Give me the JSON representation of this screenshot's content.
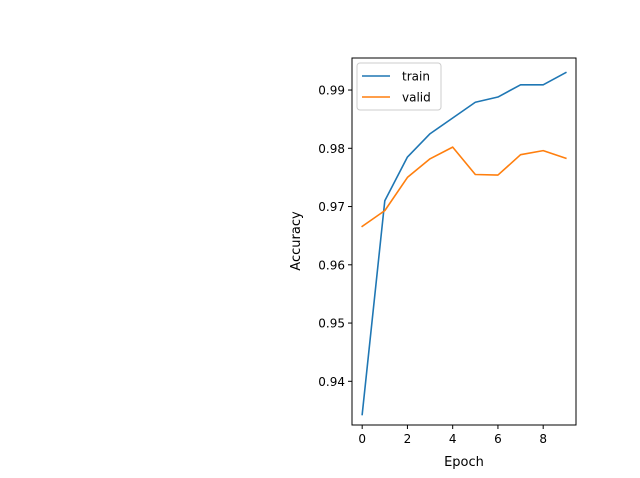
{
  "chart_data": {
    "type": "line",
    "title": "",
    "xlabel": "Epoch",
    "ylabel": "Accuracy",
    "x": [
      0,
      1,
      2,
      3,
      4,
      5,
      6,
      7,
      8,
      9
    ],
    "xlim": [
      -0.45,
      9.45
    ],
    "ylim": [
      0.9325,
      0.9955
    ],
    "xticks": [
      0,
      2,
      4,
      6,
      8
    ],
    "xtick_labels": [
      "0",
      "2",
      "4",
      "6",
      "8"
    ],
    "yticks": [
      0.94,
      0.95,
      0.96,
      0.97,
      0.98,
      0.99
    ],
    "ytick_labels": [
      "0.94",
      "0.95",
      "0.96",
      "0.97",
      "0.98",
      "0.99"
    ],
    "grid": false,
    "legend_position": "top-left",
    "series": [
      {
        "name": "train",
        "color": "#1f77b4",
        "values": [
          0.9343,
          0.971,
          0.9785,
          0.9825,
          0.9852,
          0.9879,
          0.9888,
          0.9909,
          0.9909,
          0.993
        ]
      },
      {
        "name": "valid",
        "color": "#ff7f0e",
        "values": [
          0.9666,
          0.9693,
          0.975,
          0.9782,
          0.9802,
          0.9755,
          0.9754,
          0.9789,
          0.9796,
          0.9783
        ]
      }
    ]
  }
}
